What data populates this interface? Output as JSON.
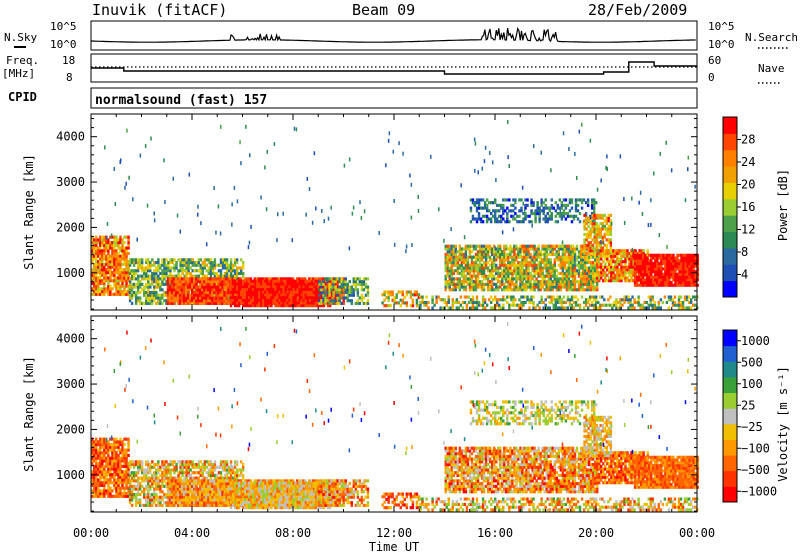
{
  "header": {
    "station": "Inuvik (fitACF)",
    "beam": "Beam 09",
    "date": "28/Feb/2009"
  },
  "top_panels": {
    "nsky_label": "N.Sky",
    "nsky_ticks": [
      "10^5",
      "10^0"
    ],
    "nsearch_label": "N.Search",
    "nsearch_ticks": [
      "10^5",
      "10^0"
    ],
    "freq_label": "Freq.",
    "freq_unit": "[MHz]",
    "freq_ticks": [
      "18",
      "8"
    ],
    "nave_label": "Nave",
    "nave_ticks": [
      "60",
      "0"
    ],
    "cpid_label": "CPID",
    "cpid_value": "normalsound (fast) 157"
  },
  "colors": {
    "power": [
      "#0000ff",
      "#1f4fb4",
      "#2a6aa0",
      "#2e8a55",
      "#4ea14a",
      "#9acd32",
      "#e8d000",
      "#f0a000",
      "#ff7f00",
      "#ff4500",
      "#ff0000"
    ],
    "velocity": [
      "#0000ff",
      "#2060d0",
      "#208a8a",
      "#3aa03a",
      "#9acd32",
      "#c0c0c0",
      "#f0c000",
      "#ff9900",
      "#ff6600",
      "#ff3300",
      "#ff0000"
    ]
  },
  "chart_data": [
    {
      "type": "heatmap",
      "name": "power",
      "ylabel": "Slant Range [km]",
      "yticks": [
        "1000",
        "2000",
        "3000",
        "4000"
      ],
      "ylim": [
        180,
        4500
      ],
      "xticks": [
        "00:00",
        "04:00",
        "08:00",
        "12:00",
        "16:00",
        "20:00",
        "00:00"
      ],
      "xlim": [
        0,
        24
      ],
      "colorbar_label": "Power [dB]",
      "colorbar_ticks": [
        "4",
        "8",
        "12",
        "16",
        "20",
        "24",
        "28"
      ],
      "colorbar_range": [
        0,
        32
      ]
    },
    {
      "type": "heatmap",
      "name": "velocity",
      "ylabel": "Slant Range [km]",
      "yticks": [
        "1000",
        "2000",
        "3000",
        "4000"
      ],
      "ylim": [
        180,
        4500
      ],
      "xticks": [
        "00:00",
        "04:00",
        "08:00",
        "12:00",
        "16:00",
        "20:00",
        "00:00"
      ],
      "xlabel": "Time UT",
      "xlim": [
        0,
        24
      ],
      "colorbar_label": "Velocity [m s⁻¹]",
      "colorbar_ticks": [
        "1000",
        "500",
        "100",
        "25",
        "−25",
        "−100",
        "−500",
        "−1000"
      ]
    }
  ]
}
